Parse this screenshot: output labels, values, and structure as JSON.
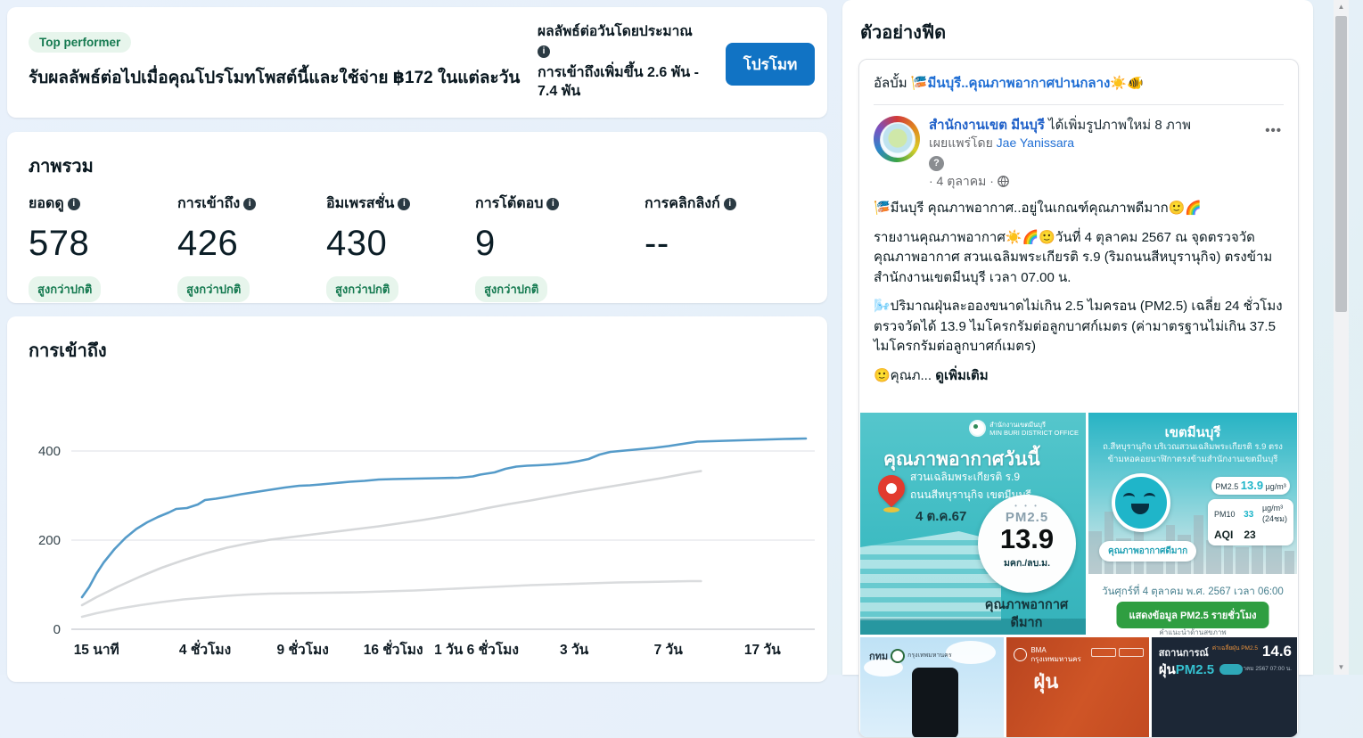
{
  "icons": {
    "info": "i",
    "help": "?",
    "menu": "•••",
    "scroll_up": "▲",
    "scroll_down": "▼"
  },
  "colors": {
    "accent_blue": "#1173c4",
    "link_blue": "#1f6ed4",
    "badge_green_text": "#157a50",
    "badge_green_bg": "#e7f5ec",
    "chart_blue": "#559bc9",
    "chart_gray": "#d6d8da",
    "photo_teal": "#3fbcc3",
    "button_green": "#2f9e41"
  },
  "promo_banner": {
    "badge": "Top performer",
    "message": "รับผลลัพธ์ต่อไปเมื่อคุณโปรโมทโพสต์นี้และใช้จ่าย ฿172 ในแต่ละวัน",
    "estimate_title": "ผลลัพธ์ต่อวันโดยประมาณ",
    "estimate_value": "การเข้าถึงเพิ่มขึ้น 2.6 พัน - 7.4 พัน",
    "promote_button": "โปรโมท"
  },
  "overview": {
    "title": "ภาพรวม",
    "metrics": [
      {
        "label": "ยอดดู",
        "value": "578",
        "badge": "สูงกว่าปกติ"
      },
      {
        "label": "การเข้าถึง",
        "value": "426",
        "badge": "สูงกว่าปกติ"
      },
      {
        "label": "อิมเพรสชั่น",
        "value": "430",
        "badge": "สูงกว่าปกติ"
      },
      {
        "label": "การโต้ตอบ",
        "value": "9",
        "badge": "สูงกว่าปกติ"
      },
      {
        "label": "การคลิกลิงก์",
        "value": "--",
        "badge": ""
      }
    ]
  },
  "chart_data": {
    "type": "line",
    "title": "การเข้าถึง",
    "xlabel": "",
    "ylabel": "",
    "ylim": [
      0,
      440
    ],
    "yticks": [
      0,
      200,
      400
    ],
    "grid": "horizontal",
    "legend": "none",
    "x_axis_labels": [
      {
        "label": "15 นาที",
        "pos": 0.02
      },
      {
        "label": "4 ชั่วโมง",
        "pos": 0.17
      },
      {
        "label": "9 ชั่วโมง",
        "pos": 0.305
      },
      {
        "label": "16 ชั่วโมง",
        "pos": 0.43
      },
      {
        "label": "1 วัน 6 ชั่วโมง",
        "pos": 0.545
      },
      {
        "label": "3 วัน",
        "pos": 0.68
      },
      {
        "label": "7 วัน",
        "pos": 0.81
      },
      {
        "label": "17 วัน",
        "pos": 0.94
      }
    ],
    "series": [
      {
        "id": "reach-line-blue",
        "color": "#559bc9",
        "width": 2.6,
        "points": [
          [
            0,
            72
          ],
          [
            0.01,
            95
          ],
          [
            0.02,
            125
          ],
          [
            0.03,
            150
          ],
          [
            0.045,
            180
          ],
          [
            0.06,
            205
          ],
          [
            0.075,
            225
          ],
          [
            0.09,
            240
          ],
          [
            0.105,
            252
          ],
          [
            0.12,
            262
          ],
          [
            0.13,
            270
          ],
          [
            0.145,
            272
          ],
          [
            0.16,
            280
          ],
          [
            0.17,
            290
          ],
          [
            0.185,
            293
          ],
          [
            0.2,
            297
          ],
          [
            0.22,
            303
          ],
          [
            0.24,
            308
          ],
          [
            0.26,
            313
          ],
          [
            0.28,
            318
          ],
          [
            0.3,
            322
          ],
          [
            0.315,
            323
          ],
          [
            0.33,
            325
          ],
          [
            0.35,
            328
          ],
          [
            0.37,
            331
          ],
          [
            0.39,
            333
          ],
          [
            0.41,
            336
          ],
          [
            0.43,
            337
          ],
          [
            0.46,
            338
          ],
          [
            0.49,
            339
          ],
          [
            0.52,
            340
          ],
          [
            0.54,
            343
          ],
          [
            0.55,
            347
          ],
          [
            0.57,
            352
          ],
          [
            0.585,
            360
          ],
          [
            0.6,
            365
          ],
          [
            0.615,
            367
          ],
          [
            0.63,
            368
          ],
          [
            0.65,
            370
          ],
          [
            0.67,
            373
          ],
          [
            0.685,
            377
          ],
          [
            0.7,
            382
          ],
          [
            0.715,
            392
          ],
          [
            0.73,
            398
          ],
          [
            0.75,
            401
          ],
          [
            0.77,
            404
          ],
          [
            0.79,
            407
          ],
          [
            0.81,
            411
          ],
          [
            0.83,
            416
          ],
          [
            0.85,
            421
          ],
          [
            0.87,
            422
          ],
          [
            0.89,
            423
          ],
          [
            0.91,
            424
          ],
          [
            0.93,
            425
          ],
          [
            0.95,
            426
          ],
          [
            0.97,
            427
          ],
          [
            1,
            428
          ]
        ]
      },
      {
        "id": "benchmark-line-upper-gray",
        "color": "#d6d8da",
        "width": 2.6,
        "points": [
          [
            0,
            54
          ],
          [
            0.02,
            72
          ],
          [
            0.05,
            96
          ],
          [
            0.08,
            118
          ],
          [
            0.11,
            138
          ],
          [
            0.14,
            155
          ],
          [
            0.17,
            170
          ],
          [
            0.2,
            183
          ],
          [
            0.23,
            193
          ],
          [
            0.26,
            201
          ],
          [
            0.29,
            207
          ],
          [
            0.32,
            213
          ],
          [
            0.35,
            219
          ],
          [
            0.38,
            225
          ],
          [
            0.41,
            231
          ],
          [
            0.44,
            238
          ],
          [
            0.47,
            245
          ],
          [
            0.5,
            253
          ],
          [
            0.53,
            262
          ],
          [
            0.56,
            272
          ],
          [
            0.59,
            281
          ],
          [
            0.62,
            289
          ],
          [
            0.65,
            298
          ],
          [
            0.68,
            307
          ],
          [
            0.71,
            315
          ],
          [
            0.74,
            323
          ],
          [
            0.77,
            331
          ],
          [
            0.8,
            339
          ],
          [
            0.82,
            345
          ],
          [
            0.84,
            351
          ],
          [
            0.855,
            355
          ]
        ]
      },
      {
        "id": "benchmark-line-lower-gray",
        "color": "#dadcde",
        "width": 2.6,
        "points": [
          [
            0,
            28
          ],
          [
            0.02,
            36
          ],
          [
            0.05,
            46
          ],
          [
            0.08,
            54
          ],
          [
            0.11,
            61
          ],
          [
            0.14,
            67
          ],
          [
            0.17,
            71
          ],
          [
            0.2,
            75
          ],
          [
            0.23,
            78
          ],
          [
            0.26,
            80
          ],
          [
            0.3,
            81
          ],
          [
            0.34,
            82
          ],
          [
            0.38,
            83
          ],
          [
            0.42,
            85
          ],
          [
            0.46,
            87
          ],
          [
            0.5,
            90
          ],
          [
            0.54,
            93
          ],
          [
            0.58,
            96
          ],
          [
            0.62,
            99
          ],
          [
            0.66,
            101
          ],
          [
            0.7,
            103
          ],
          [
            0.74,
            105
          ],
          [
            0.78,
            106
          ],
          [
            0.81,
            107
          ],
          [
            0.84,
            108
          ],
          [
            0.855,
            108
          ]
        ]
      }
    ]
  },
  "feed_preview": {
    "title": "ตัวอย่างฟีด",
    "post": {
      "album_prefix": "อัลบั้ม",
      "album_title": "🎏มีนบุรี..คุณภาพอากาศปานกลาง☀️🐠",
      "page_name": "สำนักงานเขต มีนบุรี",
      "action_text": "ได้เพิ่มรูปภาพใหม่ 8 ภาพ",
      "published_by_label": "เผยแพร่โดย",
      "published_by_name": "Jae Yanissara",
      "date_line": "· 4 ตุลาคม ·",
      "body_line1": "🎏มีนบุรี คุณภาพอากาศ..อยู่ในเกณฑ์คุณภาพดีมาก🙂🌈",
      "body_para1": "รายงานคุณภาพอากาศ☀️🌈🙂วันที่ 4 ตุลาคม 2567 ณ จุดตรวจวัดคุณภาพอากาศ สวนเฉลิมพระเกียรติ ร.9 (ริมถนนสีหบุรานุกิจ) ตรงข้ามสำนักงานเขตมีนบุรี เวลา 07.00 น.",
      "body_para2": "🌬️ปริมาณฝุ่นละอองขนาดไม่เกิน 2.5 ไมครอน (PM2.5) เฉลี่ย 24 ชั่วโมง ตรวจวัดได้ 13.9 ไมโครกรัมต่อลูกบาศก์เมตร (ค่ามาตรฐานไม่เกิน 37.5 ไมโครกรัมต่อลูกบาศก์เมตร)",
      "body_truncated": "🙂คุณภ...",
      "see_more": "ดูเพิ่มเติม"
    },
    "photos": {
      "left_card": {
        "org_name": "สำนักงานเขตมีนบุรี",
        "org_sub": "MIN BURI DISTRICT OFFICE",
        "title": "คุณภาพอากาศวันนี้",
        "location_line1": "สวนเฉลิมพระเกียรติ ร.9",
        "location_line2": "ถนนสีหบุรานุกิจ เขตมีนบุรี",
        "date": "4 ต.ค.67",
        "pm_dots": "• • •",
        "pm_label": "PM2.5",
        "pm_value": "13.9",
        "pm_unit": "มคก./ลบ.ม.",
        "quality_line1": "คุณภาพอากาศ",
        "quality_line2": "ดีมาก"
      },
      "right_card": {
        "title": "เขตมีนบุรี",
        "subtitle": "ถ.สีหบุรานุกิจ บริเวณสวนเฉลิมพระเกียรติ ร.9 ตรงข้ามหอคอยนาฬิกาตรงข้ามสำนักงานเขตมีนบุรี",
        "pm25_label": "PM2.5",
        "pm25_value": "13.9",
        "pm25_unit": "µg/m³",
        "pm10_label": "PM10",
        "pm10_value": "33",
        "pm10_unit": "µg/m³",
        "pm10_period": "(24ชม)",
        "aqi_label": "AQI",
        "aqi_value": "23",
        "quality_badge": "คุณภาพอากาศดีมาก",
        "date_line": "วันศุกร์ที่ 4 ตุลาคม พ.ศ. 2567 เวลา 06:00",
        "button": "แสดงข้อมูล PM2.5 รายชั่วโมง",
        "footnote": "คำแนะนำด้านสุขภาพ"
      },
      "thumb1": {
        "brand": "กทม",
        "brand_sub": "กรุงเทพมหานคร"
      },
      "thumb2": {
        "brand": "BMA",
        "brand_sub": "กรุงเทพมหานคร"
      },
      "thumb3": {
        "title": "สถานการณ์",
        "title2_white": "ฝุ่น",
        "title2_teal": "PM2.5",
        "avg_label": "ค่าเฉลี่ยฝุ่น PM2.5",
        "avg_value": "14.6",
        "date": "4 ตุลาคม 2567  07:00 น."
      }
    }
  }
}
